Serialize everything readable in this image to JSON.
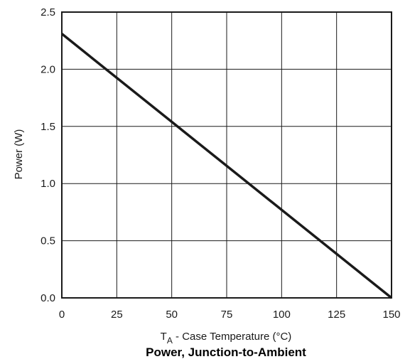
{
  "chart_data": {
    "type": "line",
    "title": "Power, Junction-to-Ambient",
    "xlabel": {
      "main": "T",
      "sub": "A",
      "rest": " - Case Temperature (°C)"
    },
    "ylabel": "Power (W)",
    "xlim": [
      0,
      150
    ],
    "ylim": [
      0,
      2.5
    ],
    "x_ticks": [
      "0",
      "25",
      "50",
      "75",
      "100",
      "125",
      "150"
    ],
    "y_ticks": [
      "0.0",
      "0.5",
      "1.0",
      "1.5",
      "2.0",
      "2.5"
    ],
    "grid": true,
    "series": [
      {
        "x": [
          0,
          150
        ],
        "y": [
          2.31,
          0.0
        ],
        "color": "#1a1a1a"
      }
    ]
  }
}
